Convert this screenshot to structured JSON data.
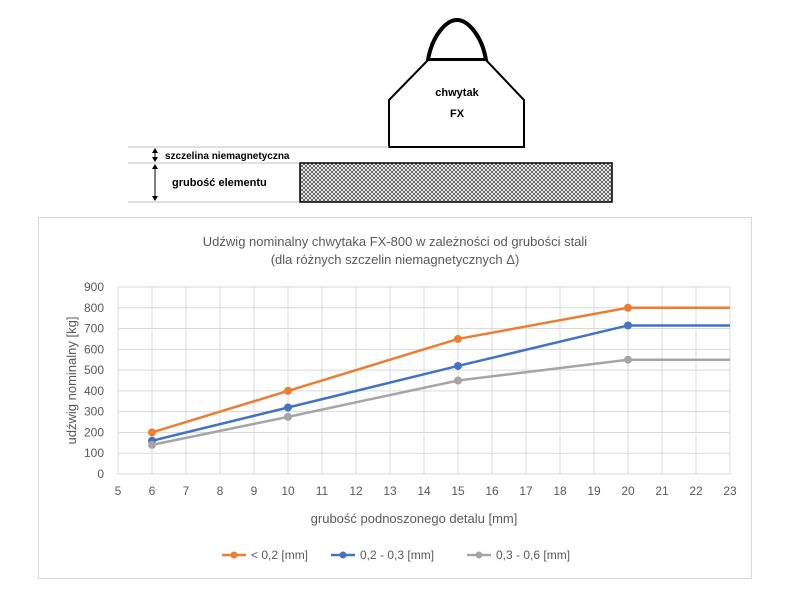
{
  "diagram": {
    "gripper_line1": "chwytak",
    "gripper_line2": "FX",
    "gap_label": "szczelina niemagnetyczna",
    "thickness_label": "grubość elementu"
  },
  "chart_data": {
    "type": "line",
    "title": [
      "Udźwig nominalny chwytaka FX-800 w zależności od grubości stali",
      "(dla różnych szczelin niemagnetycznych Δ)"
    ],
    "xlabel": "grubość podnoszonego detalu [mm]",
    "ylabel": "udźwig nominalny [kg]",
    "xlim": [
      5,
      23
    ],
    "ylim": [
      0,
      900
    ],
    "xticks": [
      5,
      6,
      7,
      8,
      9,
      10,
      11,
      12,
      13,
      14,
      15,
      16,
      17,
      18,
      19,
      20,
      21,
      22,
      23
    ],
    "yticks": [
      0,
      100,
      200,
      300,
      400,
      500,
      600,
      700,
      800,
      900
    ],
    "grid": true,
    "legend_position": "bottom",
    "series": [
      {
        "name": "< 0,2 [mm]",
        "color": "#ed7d31",
        "x": [
          6,
          10,
          15,
          20,
          23
        ],
        "y": [
          200,
          400,
          650,
          800,
          800
        ],
        "markers": [
          true,
          true,
          true,
          true,
          false
        ]
      },
      {
        "name": "0,2 - 0,3 [mm]",
        "color": "#4472c4",
        "x": [
          6,
          10,
          15,
          20,
          23
        ],
        "y": [
          160,
          320,
          520,
          715,
          715
        ],
        "markers": [
          true,
          true,
          true,
          true,
          false
        ]
      },
      {
        "name": "0,3 - 0,6 [mm]",
        "color": "#a5a5a5",
        "x": [
          6,
          10,
          15,
          20,
          23
        ],
        "y": [
          140,
          275,
          450,
          550,
          550
        ],
        "markers": [
          true,
          true,
          true,
          true,
          false
        ]
      }
    ]
  }
}
